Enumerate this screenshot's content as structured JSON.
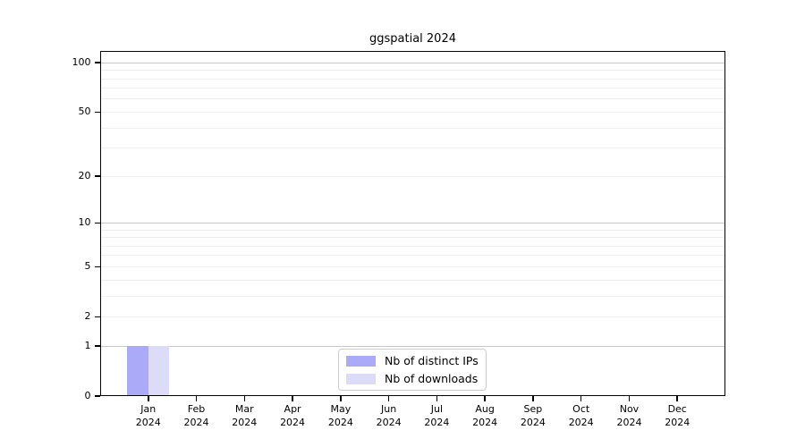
{
  "chart_data": {
    "type": "bar",
    "title": "ggspatial 2024",
    "categories": [
      "Jan",
      "Feb",
      "Mar",
      "Apr",
      "May",
      "Jun",
      "Jul",
      "Aug",
      "Sep",
      "Oct",
      "Nov",
      "Dec"
    ],
    "year": "2024",
    "series": [
      {
        "name": "Nb of distinct IPs",
        "color": "#aaaaf8",
        "values": [
          1,
          0,
          0,
          0,
          0,
          0,
          0,
          0,
          0,
          0,
          0,
          0
        ]
      },
      {
        "name": "Nb of downloads",
        "color": "#dcdcf9",
        "values": [
          1,
          0,
          0,
          0,
          0,
          0,
          0,
          0,
          0,
          0,
          0,
          0
        ]
      }
    ],
    "xlabel": "",
    "ylabel": "",
    "yscale": "log1p",
    "ylim": [
      0,
      118
    ],
    "yticks": [
      0,
      1,
      2,
      5,
      10,
      20,
      50,
      100
    ],
    "major_gridlines": [
      1,
      10,
      100
    ],
    "minor_gridlines": [
      2,
      3,
      4,
      5,
      6,
      7,
      8,
      9,
      20,
      30,
      40,
      50,
      60,
      70,
      80,
      90
    ],
    "grid": true,
    "legend_position": "bottom-center",
    "colors": {
      "axis": "#000000",
      "major_grid": "#c8c8c8",
      "minor_grid": "#efefef",
      "background": "#ffffff"
    }
  }
}
